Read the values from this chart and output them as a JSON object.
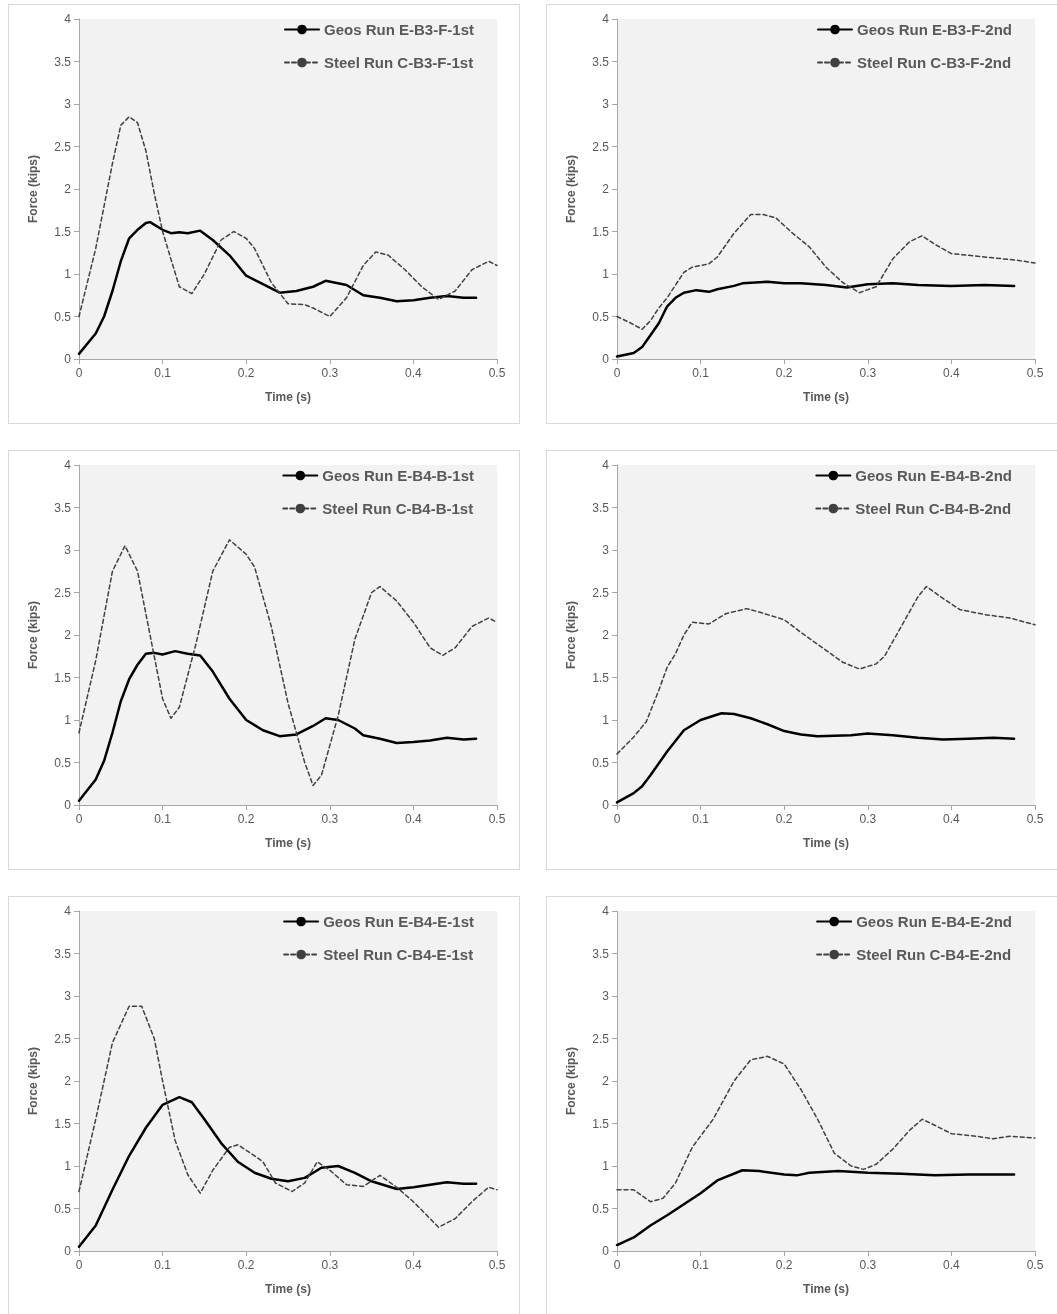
{
  "chart_data": [
    {
      "type": "line",
      "xlabel": "Time (s)",
      "ylabel": "Force (kips)",
      "xlim": [
        0,
        0.5
      ],
      "xticks": [
        0,
        0.1,
        0.2,
        0.3,
        0.4,
        0.5
      ],
      "ylim": [
        0,
        4
      ],
      "yticks": [
        0,
        0.5,
        1,
        1.5,
        2,
        2.5,
        3,
        3.5,
        4
      ],
      "grid": false,
      "legend": "top right",
      "marker": "none",
      "series": [
        {
          "name": "Geos Run E-B3-F-1st",
          "color": "#000000",
          "line_style": "solid",
          "x": [
            0,
            0.02,
            0.03,
            0.04,
            0.05,
            0.06,
            0.07,
            0.08,
            0.085,
            0.1,
            0.11,
            0.12,
            0.13,
            0.145,
            0.16,
            0.18,
            0.2,
            0.22,
            0.24,
            0.26,
            0.28,
            0.295,
            0.32,
            0.34,
            0.36,
            0.38,
            0.4,
            0.42,
            0.44,
            0.46,
            0.475
          ],
          "values": [
            0.06,
            0.3,
            0.5,
            0.8,
            1.15,
            1.42,
            1.52,
            1.6,
            1.61,
            1.52,
            1.48,
            1.49,
            1.48,
            1.51,
            1.4,
            1.22,
            0.98,
            0.88,
            0.78,
            0.8,
            0.85,
            0.92,
            0.87,
            0.75,
            0.72,
            0.68,
            0.69,
            0.72,
            0.74,
            0.72,
            0.72
          ]
        },
        {
          "name": "Steel Run C-B3-F-1st",
          "color": "#404040",
          "line_style": "dashed",
          "x": [
            0,
            0.02,
            0.04,
            0.05,
            0.06,
            0.07,
            0.08,
            0.09,
            0.1,
            0.12,
            0.135,
            0.15,
            0.17,
            0.185,
            0.2,
            0.21,
            0.23,
            0.25,
            0.27,
            0.28,
            0.3,
            0.32,
            0.34,
            0.355,
            0.37,
            0.39,
            0.41,
            0.43,
            0.45,
            0.47,
            0.49,
            0.5
          ],
          "values": [
            0.5,
            1.3,
            2.3,
            2.75,
            2.85,
            2.78,
            2.45,
            1.95,
            1.5,
            0.85,
            0.77,
            1.0,
            1.4,
            1.5,
            1.42,
            1.3,
            0.9,
            0.65,
            0.64,
            0.6,
            0.5,
            0.72,
            1.1,
            1.26,
            1.22,
            1.05,
            0.85,
            0.7,
            0.8,
            1.05,
            1.15,
            1.1
          ]
        }
      ]
    },
    {
      "type": "line",
      "xlabel": "Time (s)",
      "ylabel": "Force (kips)",
      "xlim": [
        0,
        0.5
      ],
      "xticks": [
        0,
        0.1,
        0.2,
        0.3,
        0.4,
        0.5
      ],
      "ylim": [
        0,
        4
      ],
      "yticks": [
        0,
        0.5,
        1,
        1.5,
        2,
        2.5,
        3,
        3.5,
        4
      ],
      "grid": false,
      "legend": "top right",
      "marker": "none",
      "series": [
        {
          "name": "Geos Run E-B3-F-2nd",
          "color": "#000000",
          "line_style": "solid",
          "x": [
            0,
            0.02,
            0.03,
            0.04,
            0.05,
            0.06,
            0.07,
            0.08,
            0.095,
            0.11,
            0.12,
            0.14,
            0.15,
            0.18,
            0.2,
            0.22,
            0.25,
            0.275,
            0.3,
            0.33,
            0.36,
            0.4,
            0.44,
            0.475
          ],
          "values": [
            0.03,
            0.07,
            0.14,
            0.28,
            0.42,
            0.62,
            0.72,
            0.78,
            0.81,
            0.79,
            0.82,
            0.86,
            0.89,
            0.91,
            0.89,
            0.89,
            0.87,
            0.84,
            0.88,
            0.89,
            0.87,
            0.86,
            0.87,
            0.86
          ]
        },
        {
          "name": "Steel Run C-B3-F-2nd",
          "color": "#404040",
          "line_style": "dashed",
          "x": [
            0,
            0.015,
            0.03,
            0.04,
            0.05,
            0.06,
            0.08,
            0.09,
            0.11,
            0.12,
            0.14,
            0.16,
            0.175,
            0.19,
            0.21,
            0.23,
            0.25,
            0.27,
            0.29,
            0.31,
            0.33,
            0.35,
            0.365,
            0.38,
            0.4,
            0.42,
            0.45,
            0.48,
            0.5
          ],
          "values": [
            0.5,
            0.43,
            0.35,
            0.45,
            0.6,
            0.72,
            1.02,
            1.08,
            1.12,
            1.2,
            1.48,
            1.7,
            1.7,
            1.66,
            1.48,
            1.32,
            1.08,
            0.9,
            0.78,
            0.85,
            1.18,
            1.38,
            1.45,
            1.35,
            1.24,
            1.22,
            1.19,
            1.16,
            1.13
          ]
        }
      ]
    },
    {
      "type": "line",
      "xlabel": "Time (s)",
      "ylabel": "Force (kips)",
      "xlim": [
        0,
        0.5
      ],
      "xticks": [
        0,
        0.1,
        0.2,
        0.3,
        0.4,
        0.5
      ],
      "ylim": [
        0,
        4
      ],
      "yticks": [
        0,
        0.5,
        1,
        1.5,
        2,
        2.5,
        3,
        3.5,
        4
      ],
      "grid": false,
      "legend": "top right",
      "marker": "none",
      "series": [
        {
          "name": "Geos Run E-B4-B-1st",
          "color": "#000000",
          "line_style": "solid",
          "x": [
            0,
            0.02,
            0.03,
            0.04,
            0.05,
            0.06,
            0.07,
            0.08,
            0.09,
            0.1,
            0.115,
            0.13,
            0.145,
            0.16,
            0.18,
            0.2,
            0.22,
            0.24,
            0.26,
            0.28,
            0.295,
            0.31,
            0.33,
            0.34,
            0.36,
            0.38,
            0.4,
            0.42,
            0.44,
            0.46,
            0.475
          ],
          "values": [
            0.05,
            0.3,
            0.52,
            0.85,
            1.22,
            1.48,
            1.65,
            1.78,
            1.79,
            1.77,
            1.81,
            1.78,
            1.76,
            1.57,
            1.25,
            1.0,
            0.88,
            0.81,
            0.83,
            0.93,
            1.02,
            1.0,
            0.9,
            0.82,
            0.78,
            0.73,
            0.74,
            0.76,
            0.79,
            0.77,
            0.78
          ]
        },
        {
          "name": "Steel Run C-B4-B-1st",
          "color": "#404040",
          "line_style": "dashed",
          "x": [
            0,
            0.02,
            0.04,
            0.055,
            0.07,
            0.085,
            0.1,
            0.11,
            0.12,
            0.14,
            0.16,
            0.18,
            0.2,
            0.21,
            0.23,
            0.25,
            0.27,
            0.28,
            0.29,
            0.31,
            0.33,
            0.35,
            0.36,
            0.38,
            0.4,
            0.42,
            0.435,
            0.45,
            0.47,
            0.49,
            0.5
          ],
          "values": [
            0.85,
            1.7,
            2.75,
            3.05,
            2.75,
            2.0,
            1.25,
            1.02,
            1.15,
            1.9,
            2.75,
            3.12,
            2.95,
            2.8,
            2.1,
            1.2,
            0.5,
            0.23,
            0.35,
            1.05,
            1.95,
            2.5,
            2.57,
            2.4,
            2.15,
            1.85,
            1.76,
            1.85,
            2.1,
            2.2,
            2.15
          ]
        }
      ]
    },
    {
      "type": "line",
      "xlabel": "Time (s)",
      "ylabel": "Force (kips)",
      "xlim": [
        0,
        0.5
      ],
      "xticks": [
        0,
        0.1,
        0.2,
        0.3,
        0.4,
        0.5
      ],
      "ylim": [
        0,
        4
      ],
      "yticks": [
        0,
        0.5,
        1,
        1.5,
        2,
        2.5,
        3,
        3.5,
        4
      ],
      "grid": false,
      "legend": "top right",
      "marker": "none",
      "series": [
        {
          "name": "Geos Run E-B4-B-2nd",
          "color": "#000000",
          "line_style": "solid",
          "x": [
            0,
            0.02,
            0.03,
            0.04,
            0.06,
            0.08,
            0.1,
            0.125,
            0.14,
            0.16,
            0.18,
            0.2,
            0.22,
            0.24,
            0.28,
            0.3,
            0.33,
            0.36,
            0.39,
            0.42,
            0.45,
            0.475
          ],
          "values": [
            0.03,
            0.14,
            0.22,
            0.35,
            0.63,
            0.88,
            1.0,
            1.08,
            1.07,
            1.02,
            0.95,
            0.87,
            0.83,
            0.81,
            0.82,
            0.84,
            0.82,
            0.79,
            0.77,
            0.78,
            0.79,
            0.78
          ]
        },
        {
          "name": "Steel Run C-B4-B-2nd",
          "color": "#404040",
          "line_style": "dashed",
          "x": [
            0,
            0.02,
            0.035,
            0.05,
            0.06,
            0.07,
            0.08,
            0.09,
            0.11,
            0.13,
            0.155,
            0.17,
            0.2,
            0.22,
            0.25,
            0.27,
            0.29,
            0.31,
            0.32,
            0.34,
            0.36,
            0.37,
            0.39,
            0.41,
            0.44,
            0.47,
            0.5
          ],
          "values": [
            0.6,
            0.8,
            0.98,
            1.35,
            1.62,
            1.78,
            2.0,
            2.15,
            2.13,
            2.25,
            2.31,
            2.27,
            2.18,
            2.03,
            1.82,
            1.68,
            1.6,
            1.66,
            1.75,
            2.1,
            2.45,
            2.57,
            2.43,
            2.3,
            2.24,
            2.2,
            2.12
          ]
        }
      ]
    },
    {
      "type": "line",
      "xlabel": "Time (s)",
      "ylabel": "Force (kips)",
      "xlim": [
        0,
        0.5
      ],
      "xticks": [
        0,
        0.1,
        0.2,
        0.3,
        0.4,
        0.5
      ],
      "ylim": [
        0,
        4
      ],
      "yticks": [
        0,
        0.5,
        1,
        1.5,
        2,
        2.5,
        3,
        3.5,
        4
      ],
      "grid": false,
      "legend": "top right",
      "marker": "none",
      "series": [
        {
          "name": "Geos Run E-B4-E-1st",
          "color": "#000000",
          "line_style": "solid",
          "x": [
            0,
            0.02,
            0.04,
            0.06,
            0.08,
            0.1,
            0.12,
            0.135,
            0.15,
            0.17,
            0.19,
            0.21,
            0.23,
            0.25,
            0.27,
            0.29,
            0.31,
            0.33,
            0.35,
            0.38,
            0.4,
            0.42,
            0.44,
            0.46,
            0.475
          ],
          "values": [
            0.05,
            0.3,
            0.72,
            1.12,
            1.45,
            1.72,
            1.81,
            1.75,
            1.55,
            1.27,
            1.05,
            0.92,
            0.85,
            0.82,
            0.86,
            0.98,
            1.0,
            0.92,
            0.82,
            0.73,
            0.75,
            0.78,
            0.81,
            0.79,
            0.79
          ]
        },
        {
          "name": "Steel Run C-B4-E-1st",
          "color": "#404040",
          "line_style": "dashed",
          "x": [
            0,
            0.02,
            0.04,
            0.06,
            0.075,
            0.09,
            0.1,
            0.115,
            0.13,
            0.145,
            0.16,
            0.18,
            0.19,
            0.21,
            0.22,
            0.235,
            0.255,
            0.27,
            0.285,
            0.3,
            0.32,
            0.34,
            0.36,
            0.38,
            0.4,
            0.42,
            0.43,
            0.45,
            0.47,
            0.49,
            0.5
          ],
          "values": [
            0.7,
            1.55,
            2.45,
            2.88,
            2.88,
            2.5,
            2.0,
            1.3,
            0.9,
            0.68,
            0.95,
            1.22,
            1.25,
            1.12,
            1.05,
            0.8,
            0.7,
            0.8,
            1.05,
            0.95,
            0.78,
            0.76,
            0.89,
            0.75,
            0.58,
            0.38,
            0.28,
            0.38,
            0.58,
            0.75,
            0.72
          ]
        }
      ]
    },
    {
      "type": "line",
      "xlabel": "Time (s)",
      "ylabel": "Force (kips)",
      "xlim": [
        0,
        0.5
      ],
      "xticks": [
        0,
        0.1,
        0.2,
        0.3,
        0.4,
        0.5
      ],
      "ylim": [
        0,
        4
      ],
      "yticks": [
        0,
        0.5,
        1,
        1.5,
        2,
        2.5,
        3,
        3.5,
        4
      ],
      "grid": false,
      "legend": "top right",
      "marker": "none",
      "series": [
        {
          "name": "Geos Run E-B4-E-2nd",
          "color": "#000000",
          "line_style": "solid",
          "x": [
            0,
            0.02,
            0.04,
            0.06,
            0.08,
            0.1,
            0.12,
            0.15,
            0.17,
            0.2,
            0.215,
            0.23,
            0.265,
            0.3,
            0.34,
            0.38,
            0.42,
            0.475
          ],
          "values": [
            0.07,
            0.16,
            0.3,
            0.42,
            0.55,
            0.68,
            0.83,
            0.95,
            0.94,
            0.9,
            0.89,
            0.92,
            0.94,
            0.92,
            0.91,
            0.89,
            0.9,
            0.9
          ]
        },
        {
          "name": "Steel Run C-B4-E-2nd",
          "color": "#404040",
          "line_style": "dashed",
          "x": [
            0,
            0.02,
            0.04,
            0.055,
            0.07,
            0.09,
            0.115,
            0.14,
            0.16,
            0.18,
            0.2,
            0.22,
            0.24,
            0.26,
            0.28,
            0.295,
            0.31,
            0.33,
            0.35,
            0.365,
            0.38,
            0.4,
            0.43,
            0.45,
            0.47,
            0.5
          ],
          "values": [
            0.72,
            0.72,
            0.58,
            0.62,
            0.8,
            1.22,
            1.55,
            2.0,
            2.25,
            2.29,
            2.2,
            1.9,
            1.55,
            1.15,
            1.0,
            0.96,
            1.02,
            1.2,
            1.42,
            1.55,
            1.48,
            1.38,
            1.35,
            1.32,
            1.35,
            1.33
          ]
        }
      ]
    }
  ]
}
